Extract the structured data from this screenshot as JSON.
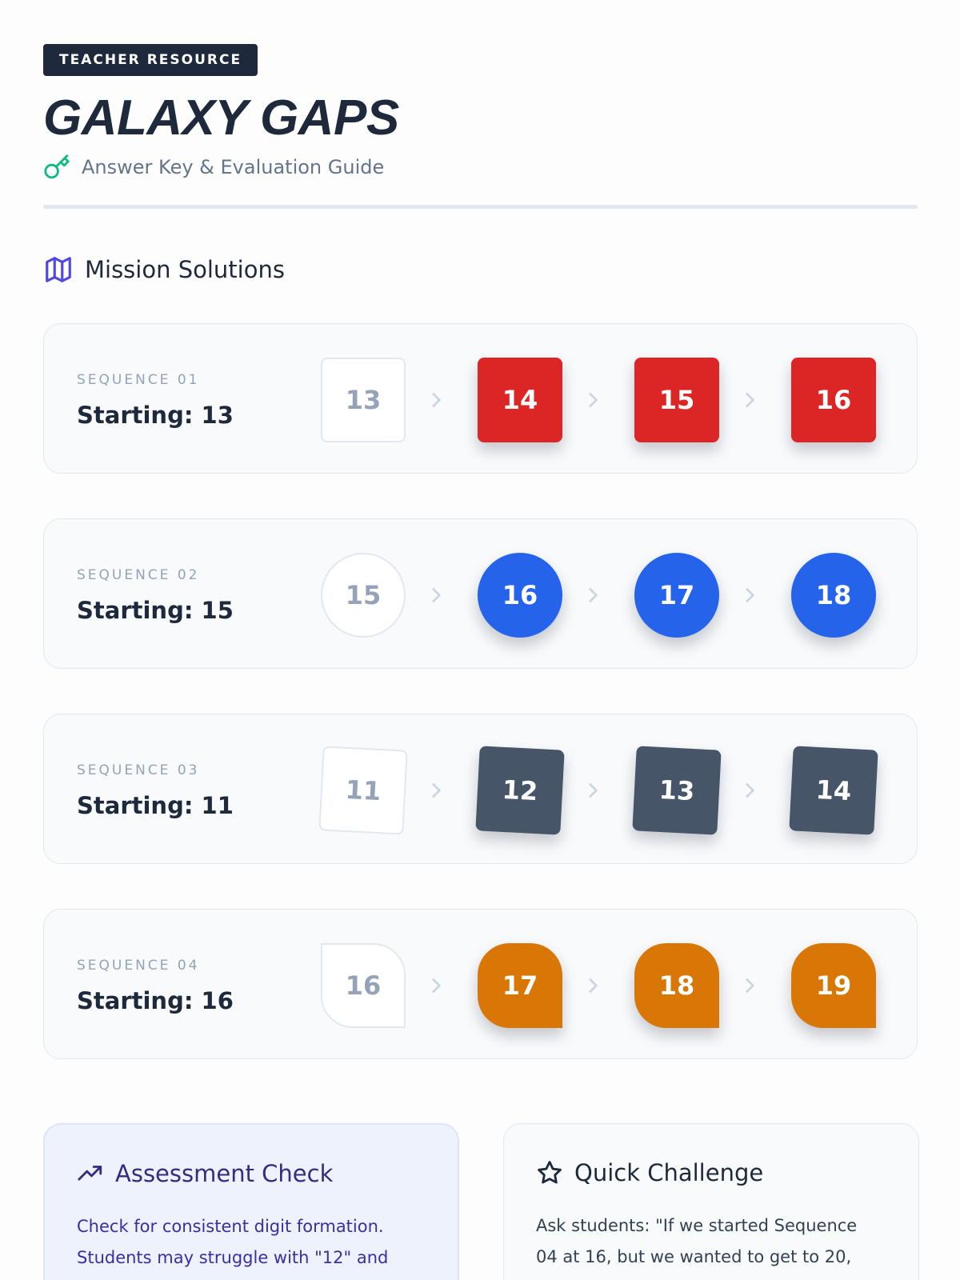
{
  "header": {
    "badge": "TEACHER RESOURCE",
    "title": "GALAXY GAPS",
    "subtitle": "Answer Key & Evaluation Guide",
    "subtitle_icon": "key-icon"
  },
  "section": {
    "title": "Mission Solutions",
    "icon": "map-icon"
  },
  "sequences": [
    {
      "label": "SEQUENCE 01",
      "start": "Starting: 13",
      "given": "13",
      "answers": [
        "14",
        "15",
        "16"
      ],
      "shape": "square",
      "color": "#dc2626"
    },
    {
      "label": "SEQUENCE 02",
      "start": "Starting: 15",
      "given": "15",
      "answers": [
        "16",
        "17",
        "18"
      ],
      "shape": "circle",
      "color": "#2563eb"
    },
    {
      "label": "SEQUENCE 03",
      "start": "Starting: 11",
      "given": "11",
      "answers": [
        "12",
        "13",
        "14"
      ],
      "shape": "tilted-square",
      "color": "#475569"
    },
    {
      "label": "SEQUENCE 04",
      "start": "Starting: 16",
      "given": "16",
      "answers": [
        "17",
        "18",
        "19"
      ],
      "shape": "leaf",
      "color": "#d97706"
    }
  ],
  "panels": {
    "assessment": {
      "title": "Assessment Check",
      "icon": "trending-up-icon",
      "body_line1": "Check for consistent digit formation.",
      "body_line2": "Students may struggle with \"12\" and"
    },
    "challenge": {
      "title": "Quick Challenge",
      "icon": "star-icon",
      "body_line1": "Ask students: \"If we started Sequence",
      "body_line2": "04 at 16, but we wanted to get to 20,"
    }
  }
}
